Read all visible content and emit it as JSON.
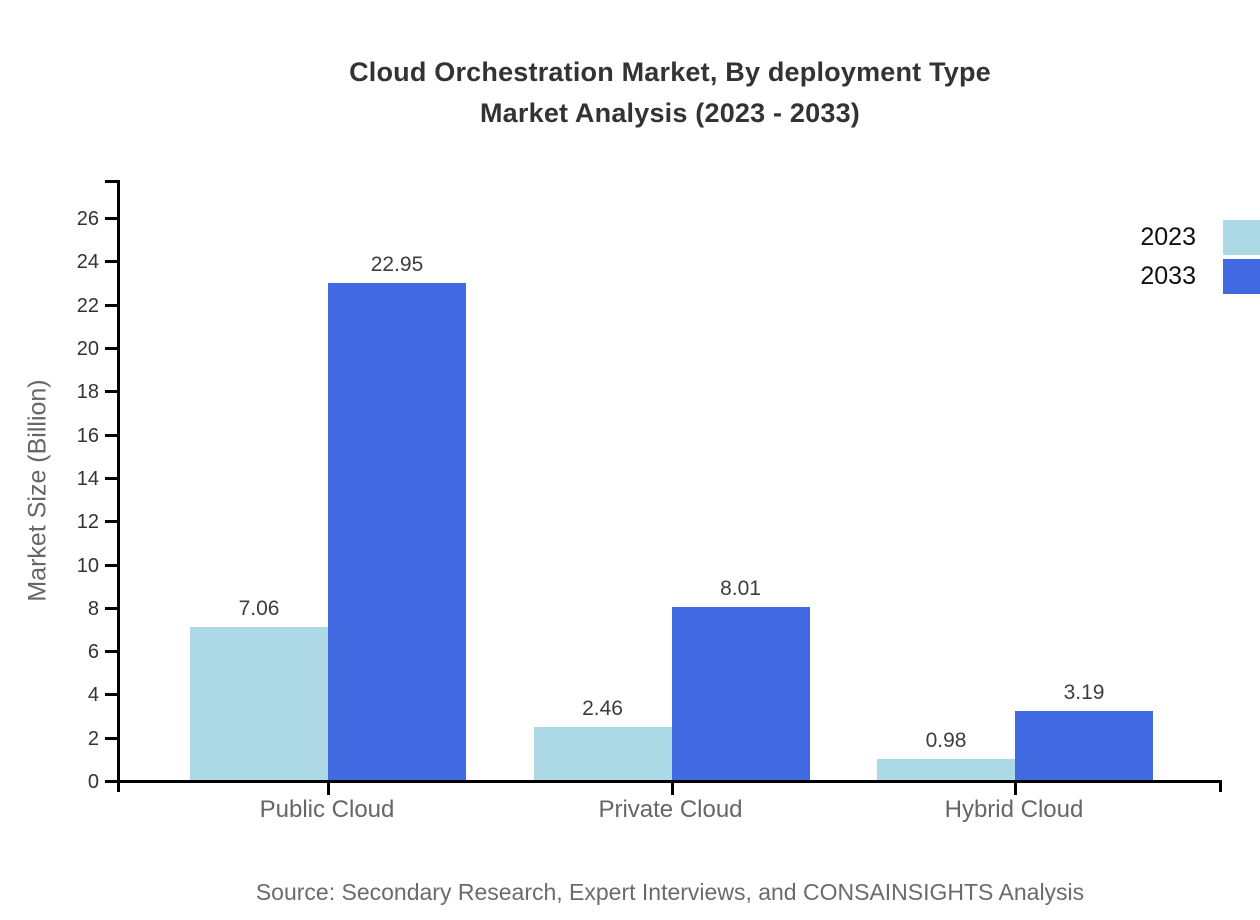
{
  "title": {
    "line1": "Cloud Orchestration Market, By deployment Type",
    "line2": "Market Analysis (2023 - 2033)"
  },
  "source": "Source: Secondary Research, Expert Interviews, and CONSAINSIGHTS Analysis",
  "chart_data": {
    "type": "bar",
    "title": "Cloud Orchestration Market, By deployment Type Market Analysis (2023 - 2033)",
    "categories": [
      "Public Cloud",
      "Private Cloud",
      "Hybrid Cloud"
    ],
    "series": [
      {
        "name": "2023",
        "color": "#ADD8E6",
        "values": [
          7.06,
          2.46,
          0.98
        ]
      },
      {
        "name": "2033",
        "color": "#4169E1",
        "values": [
          22.95,
          8.01,
          3.19
        ]
      }
    ],
    "xlabel": "",
    "ylabel": "Market Size (Billion)",
    "ylim": [
      0,
      27.7
    ],
    "yticks": [
      0,
      2,
      4,
      6,
      8,
      10,
      12,
      14,
      16,
      18,
      20,
      22,
      24,
      26
    ],
    "grid": false,
    "legend_position": "top-right",
    "value_labels": [
      "7.06",
      "2.46",
      "0.98",
      "22.95",
      "8.01",
      "3.19"
    ],
    "axis_color": "#000000"
  },
  "colors": {
    "background": "#ffffff",
    "series_2023": "#ADD8E6",
    "series_2033": "#4169E1",
    "axis": "#000000",
    "title_text": "#333333",
    "tick_text": "#333333",
    "category_text": "#666666",
    "value_text": "#3d3d3d",
    "source_text": "#6b6b6b"
  }
}
